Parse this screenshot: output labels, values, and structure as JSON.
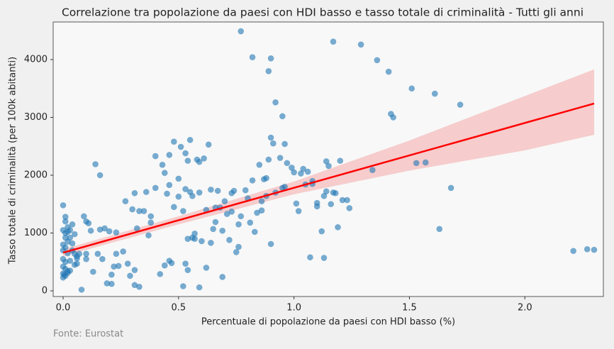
{
  "chart_data": {
    "type": "scatter",
    "title": "Correlazione tra popolazione da paesi con HDI basso e tasso totale di criminalità - Tutti gli anni",
    "x_label": "Percentuale di popolazione da paesi con HDI basso (%)",
    "y_label": "Tasso totale di criminalità (per 100k abitanti)",
    "source": "Fonte: Eurostat",
    "color": "#1f77b4",
    "xlim": [
      -0.043,
      2.34
    ],
    "ylim": [
      -98,
      4650
    ],
    "xticks": [
      {
        "value": 0,
        "label": "0.0"
      },
      {
        "value": 0.5,
        "label": "0.5"
      },
      {
        "value": 1,
        "label": "1.0"
      },
      {
        "value": 1.5,
        "label": "1.5"
      },
      {
        "value": 2,
        "label": "2.0"
      }
    ],
    "yticks": [
      0,
      1000,
      2000,
      3000,
      4000
    ],
    "x": [
      0.0,
      0.01,
      0.01,
      0.0,
      0.01,
      0.02,
      0.03,
      0.04,
      0.03,
      0.05,
      0.0,
      0.01,
      0.02,
      0.04,
      0.0,
      0.02,
      0.04,
      0.05,
      0.06,
      0.0,
      0.01,
      0.03,
      0.05,
      0.06,
      0.0,
      0.01,
      0.02,
      0.0,
      0.01,
      0.02,
      0.03,
      0.0,
      0.005,
      0.06,
      0.07,
      0.02,
      0.01,
      0.08,
      0.1,
      0.1,
      0.09,
      0.1,
      0.11,
      0.12,
      0.13,
      0.14,
      0.16,
      0.15,
      0.16,
      0.17,
      0.18,
      0.2,
      0.19,
      0.21,
      0.21,
      0.22,
      0.23,
      0.23,
      0.24,
      0.26,
      0.27,
      0.28,
      0.29,
      0.3,
      0.31,
      0.31,
      0.31,
      0.32,
      0.33,
      0.33,
      0.35,
      0.36,
      0.37,
      0.38,
      0.38,
      0.4,
      0.4,
      0.42,
      0.43,
      0.44,
      0.44,
      0.45,
      0.46,
      0.46,
      0.46,
      0.47,
      0.48,
      0.48,
      0.5,
      0.5,
      0.51,
      0.52,
      0.52,
      0.53,
      0.53,
      0.53,
      0.54,
      0.54,
      0.54,
      0.55,
      0.55,
      0.56,
      0.56,
      0.57,
      0.57,
      0.58,
      0.59,
      0.59,
      0.59,
      0.6,
      0.61,
      0.62,
      0.62,
      0.63,
      0.64,
      0.64,
      0.65,
      0.66,
      0.66,
      0.67,
      0.68,
      0.69,
      0.69,
      0.7,
      0.71,
      0.72,
      0.73,
      0.73,
      0.74,
      0.75,
      0.76,
      0.76,
      0.77,
      0.77,
      0.79,
      0.8,
      0.81,
      0.82,
      0.82,
      0.83,
      0.84,
      0.85,
      0.86,
      0.86,
      0.87,
      0.88,
      0.88,
      0.89,
      0.89,
      0.9,
      0.9,
      0.9,
      0.91,
      0.92,
      0.92,
      0.94,
      0.95,
      0.95,
      0.96,
      0.96,
      0.97,
      0.99,
      1.0,
      1.01,
      1.02,
      1.03,
      1.04,
      1.05,
      1.06,
      1.07,
      1.08,
      1.08,
      1.1,
      1.1,
      1.12,
      1.13,
      1.13,
      1.14,
      1.14,
      1.15,
      1.16,
      1.17,
      1.17,
      1.18,
      1.19,
      1.2,
      1.21,
      1.23,
      1.24,
      1.29,
      1.34,
      1.36,
      1.41,
      1.42,
      1.43,
      1.51,
      1.53,
      1.57,
      1.61,
      1.63,
      1.68,
      1.72,
      2.21,
      2.27,
      2.3
    ],
    "values": [
      1480,
      1280,
      1200,
      1050,
      1000,
      1100,
      1050,
      1150,
      920,
      980,
      800,
      750,
      850,
      820,
      700,
      650,
      700,
      640,
      600,
      550,
      500,
      520,
      450,
      470,
      420,
      380,
      340,
      300,
      260,
      310,
      350,
      230,
      280,
      560,
      640,
      1020,
      920,
      20,
      550,
      640,
      1290,
      1200,
      1170,
      1040,
      330,
      2190,
      2000,
      640,
      1060,
      550,
      1080,
      1030,
      130,
      280,
      120,
      420,
      1010,
      640,
      430,
      680,
      1550,
      470,
      260,
      1410,
      1690,
      360,
      100,
      1080,
      1380,
      70,
      1380,
      1710,
      960,
      1290,
      1180,
      2330,
      1780,
      290,
      2180,
      2040,
      440,
      1680,
      2350,
      1830,
      520,
      480,
      1450,
      2580,
      1940,
      1630,
      2490,
      80,
      1380,
      2380,
      1760,
      470,
      900,
      360,
      2250,
      2610,
      1710,
      1640,
      920,
      990,
      900,
      2270,
      2230,
      1700,
      60,
      860,
      2290,
      1400,
      400,
      2530,
      830,
      1750,
      1070,
      1190,
      1440,
      1730,
      1440,
      1040,
      240,
      1550,
      1330,
      880,
      1370,
      1690,
      1730,
      670,
      1150,
      760,
      1290,
      4490,
      1740,
      1600,
      1180,
      1910,
      4040,
      1020,
      1350,
      2180,
      1550,
      1390,
      1930,
      1640,
      1950,
      3800,
      2270,
      4020,
      2650,
      810,
      2550,
      1700,
      3260,
      2300,
      3020,
      1780,
      1800,
      2540,
      2210,
      2130,
      2050,
      1510,
      1380,
      2030,
      2110,
      1840,
      2060,
      580,
      1900,
      1850,
      1460,
      1520,
      1030,
      1640,
      570,
      1720,
      2240,
      2160,
      1500,
      4310,
      1700,
      1690,
      1100,
      2250,
      1570,
      1570,
      1430,
      4260,
      2090,
      3990,
      3790,
      3060,
      3000,
      3500,
      2210,
      2220,
      3410,
      1070,
      1780,
      3220,
      690,
      720,
      710
    ],
    "regression": {
      "color": "#ff0000",
      "x": [
        0,
        2.3
      ],
      "values": [
        660,
        3240
      ]
    },
    "band": {
      "color": "#f4a0a0",
      "x": [
        0,
        0.5,
        1.0,
        1.5,
        2.0,
        2.3
      ],
      "lower": [
        600,
        1150,
        1670,
        2080,
        2430,
        2700
      ],
      "upper": [
        720,
        1290,
        1890,
        2600,
        3370,
        3830
      ]
    }
  }
}
